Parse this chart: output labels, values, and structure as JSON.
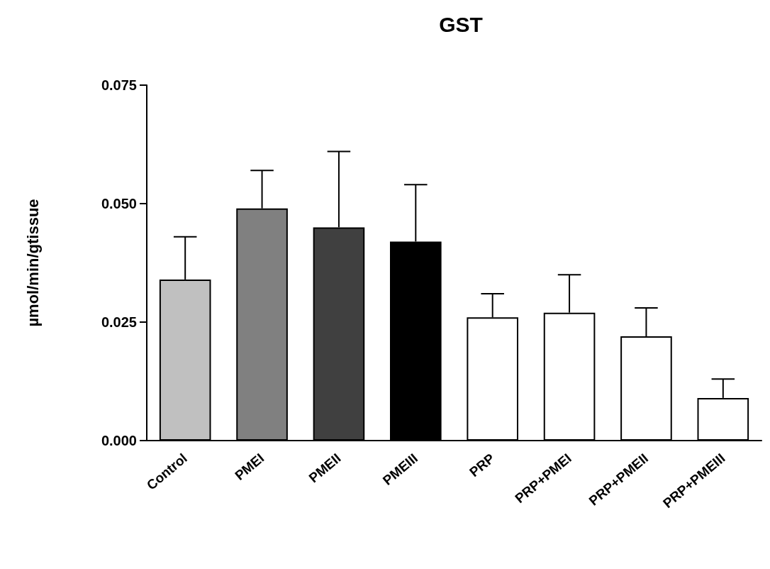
{
  "chart_data": {
    "type": "bar",
    "title": "GST",
    "ylabel": "µmol/min/gtissue",
    "categories": [
      "Control",
      "PMEI",
      "PMEII",
      "PMEIII",
      "PRP",
      "PRP+PMEI",
      "PRP+PMEII",
      "PRP+PMEIII"
    ],
    "values": [
      0.034,
      0.049,
      0.045,
      0.042,
      0.026,
      0.027,
      0.022,
      0.009
    ],
    "colors": [
      "#c0c0c0",
      "#808080",
      "#404040",
      "#000000",
      "#ffffff",
      "#ffffff",
      "#ffffff",
      "#ffffff"
    ],
    "errors": [
      [
        0.034,
        0.043
      ],
      [
        0.049,
        0.057
      ],
      [
        0.045,
        0.061
      ],
      [
        0.042,
        0.054
      ],
      [
        0.026,
        0.031
      ],
      [
        0.027,
        0.035
      ],
      [
        0.022,
        0.028
      ],
      [
        0.009,
        0.013
      ]
    ],
    "ylim": [
      0,
      0.075
    ],
    "yticks": [
      {
        "value": 0,
        "label": "0.000"
      },
      {
        "value": 0.025,
        "label": "0.025"
      },
      {
        "value": 0.05,
        "label": "0.050"
      },
      {
        "value": 0.075,
        "label": "0.075"
      }
    ]
  }
}
